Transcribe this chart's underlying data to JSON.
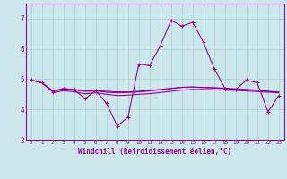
{
  "background_color": "#cce8ec",
  "grid_color": "#aacccc",
  "line_color": "#990099",
  "xlabel": "Windchill (Refroidissement éolien,°C)",
  "ylim": [
    3,
    7.5
  ],
  "xlim": [
    -0.5,
    23.5
  ],
  "yticks": [
    3,
    4,
    5,
    6,
    7
  ],
  "xticks": [
    0,
    1,
    2,
    3,
    4,
    5,
    6,
    7,
    8,
    9,
    10,
    11,
    12,
    13,
    14,
    15,
    16,
    17,
    18,
    19,
    20,
    21,
    22,
    23
  ],
  "series1_x": [
    0,
    1,
    2,
    3,
    4,
    5,
    6,
    7,
    8,
    9,
    10,
    11,
    12,
    13,
    14,
    15,
    16,
    17,
    18,
    19,
    20,
    21,
    22,
    23
  ],
  "series1_y": [
    4.97,
    4.88,
    4.58,
    4.7,
    4.65,
    4.35,
    4.62,
    4.2,
    3.45,
    3.75,
    5.5,
    5.45,
    6.1,
    6.95,
    6.75,
    6.88,
    6.22,
    5.35,
    4.7,
    4.65,
    4.97,
    4.88,
    3.92,
    4.45
  ],
  "series2_x": [
    0,
    1,
    2,
    3,
    4,
    5,
    6,
    7,
    8,
    9,
    10,
    11,
    12,
    13,
    14,
    15,
    16,
    17,
    18,
    19,
    20,
    21,
    22,
    23
  ],
  "series2_y": [
    4.97,
    4.88,
    4.62,
    4.68,
    4.66,
    4.62,
    4.63,
    4.6,
    4.58,
    4.58,
    4.6,
    4.63,
    4.66,
    4.7,
    4.73,
    4.74,
    4.73,
    4.72,
    4.7,
    4.68,
    4.66,
    4.64,
    4.6,
    4.58
  ],
  "series3_x": [
    0,
    1,
    2,
    3,
    4,
    5,
    6,
    7,
    8,
    9,
    10,
    11,
    12,
    13,
    14,
    15,
    16,
    17,
    18,
    19,
    20,
    21,
    22,
    23
  ],
  "series3_y": [
    4.97,
    4.88,
    4.6,
    4.67,
    4.64,
    4.6,
    4.61,
    4.57,
    4.55,
    4.56,
    4.58,
    4.61,
    4.65,
    4.69,
    4.73,
    4.74,
    4.72,
    4.71,
    4.69,
    4.67,
    4.65,
    4.63,
    4.59,
    4.57
  ],
  "series4_x": [
    2,
    3,
    4,
    5,
    6,
    7,
    8,
    9,
    10,
    11,
    12,
    13,
    14,
    15,
    16,
    17,
    18,
    19,
    20,
    21,
    22,
    23
  ],
  "series4_y": [
    4.55,
    4.62,
    4.58,
    4.52,
    4.55,
    4.5,
    4.46,
    4.47,
    4.5,
    4.52,
    4.56,
    4.6,
    4.64,
    4.66,
    4.66,
    4.65,
    4.64,
    4.63,
    4.61,
    4.59,
    4.57,
    4.55
  ]
}
